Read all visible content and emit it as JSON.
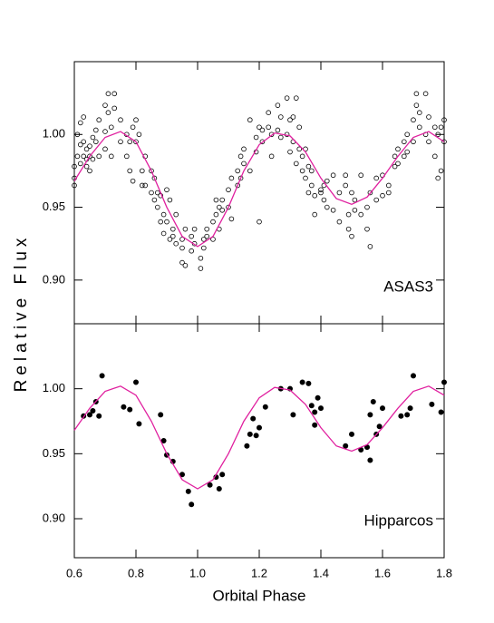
{
  "chart_data": [
    {
      "type": "scatter",
      "ylabel": "Relative Flux",
      "annotation": "ASAS3",
      "xlim": [
        0.6,
        1.8
      ],
      "ylim": [
        0.87,
        1.05
      ],
      "yticks": [
        {
          "value": 0.9,
          "label": "0.90"
        },
        0.95,
        {
          "value": 1,
          "label": "1.00"
        }
      ],
      "series": [
        {
          "type": "points",
          "marker": "open",
          "color": "#000000",
          "x": [
            0.6,
            0.6,
            0.6,
            0.61,
            0.61,
            0.62,
            0.62,
            0.62,
            0.63,
            0.63,
            0.63,
            0.64,
            0.64,
            0.64,
            0.65,
            0.65,
            0.65,
            0.66,
            0.66,
            0.67,
            0.67,
            0.68,
            0.68,
            0.7,
            0.7,
            0.7,
            0.71,
            0.71,
            0.72,
            0.72,
            0.73,
            0.73,
            0.75,
            0.75,
            0.77,
            0.77,
            0.78,
            0.78,
            0.79,
            0.79,
            0.8,
            0.8,
            0.81,
            0.82,
            0.82,
            0.83,
            0.83,
            0.85,
            0.85,
            0.86,
            0.86,
            0.87,
            0.87,
            0.88,
            0.88,
            0.89,
            0.89,
            0.9,
            0.9,
            0.91,
            0.91,
            0.92,
            0.92,
            0.93,
            0.93,
            0.95,
            0.95,
            0.95,
            0.96,
            0.96,
            0.98,
            0.98,
            0.99,
            0.99,
            1.01,
            1.01,
            1.02,
            1.02,
            1.03,
            1.03,
            1.05,
            1.05,
            1.06,
            1.06,
            1.07,
            1.07,
            1.08,
            1.08,
            1.1,
            1.1,
            1.11,
            1.11,
            1.13,
            1.13,
            1.14,
            1.14,
            1.15,
            1.15,
            1.17,
            1.17,
            1.19,
            1.19,
            1.2,
            1.2,
            1.21,
            1.21,
            1.23,
            1.23,
            1.24,
            1.24,
            1.26,
            1.26,
            1.27,
            1.27,
            1.29,
            1.29,
            1.3,
            1.3,
            1.31,
            1.31,
            1.32,
            1.32,
            1.33,
            1.33,
            1.34,
            1.34,
            1.35,
            1.35,
            1.36,
            1.36,
            1.37,
            1.37,
            1.38,
            1.38,
            1.4,
            1.4,
            1.41,
            1.41,
            1.42,
            1.42,
            1.44,
            1.44,
            1.46,
            1.46,
            1.48,
            1.48,
            1.49,
            1.49,
            1.5,
            1.5,
            1.51,
            1.51,
            1.53,
            1.53,
            1.55,
            1.55,
            1.56,
            1.56,
            1.58,
            1.58,
            1.6,
            1.6,
            1.62,
            1.62,
            1.64,
            1.64,
            1.65,
            1.65,
            1.67,
            1.67,
            1.68,
            1.68,
            1.7,
            1.7,
            1.71,
            1.71,
            1.72,
            1.72,
            1.74,
            1.74,
            1.75,
            1.75,
            1.77,
            1.77,
            1.78,
            1.78,
            1.79,
            1.79,
            1.8,
            1.8
          ],
          "values": [
            0.97,
            0.965,
            0.978,
            0.985,
            1.0,
            0.993,
            1.008,
            0.98,
            0.985,
            0.995,
            1.012,
            0.983,
            0.978,
            0.99,
            0.985,
            0.992,
            0.975,
            0.998,
            0.983,
            0.995,
            1.003,
            0.985,
            1.01,
            1.002,
            1.02,
            0.99,
            1.028,
            1.015,
            0.985,
            1.005,
            1.028,
            1.018,
            1.01,
            0.995,
            1.0,
            0.985,
            0.995,
            0.975,
            1.005,
            0.968,
            1.01,
            0.995,
            1.0,
            0.965,
            0.975,
            0.985,
            0.965,
            0.96,
            0.975,
            0.955,
            0.97,
            0.96,
            0.95,
            0.94,
            0.958,
            0.932,
            0.945,
            0.94,
            0.962,
            0.955,
            0.928,
            0.935,
            0.93,
            0.925,
            0.945,
            0.928,
            0.922,
            0.912,
            0.91,
            0.935,
            0.93,
            0.92,
            0.925,
            0.935,
            0.915,
            0.908,
            0.928,
            0.922,
            0.935,
            0.93,
            0.94,
            0.928,
            0.955,
            0.945,
            0.95,
            0.935,
            0.955,
            0.948,
            0.962,
            0.95,
            0.97,
            0.942,
            0.975,
            0.965,
            0.985,
            0.97,
            0.98,
            0.99,
            1.01,
            0.975,
            0.998,
            0.988,
            1.005,
            0.94,
            0.995,
            1.003,
            1.005,
            1.015,
            0.985,
            1.0,
            1.02,
            1.003,
            0.998,
            1.012,
            1.025,
            1.0,
            1.01,
            0.988,
            0.995,
            1.012,
            1.025,
            0.98,
            1.005,
            0.99,
            0.985,
            0.975,
            0.99,
            0.97,
            0.978,
            0.96,
            0.965,
            0.975,
            0.958,
            0.945,
            0.96,
            0.962,
            0.955,
            0.965,
            0.95,
            0.968,
            0.972,
            0.948,
            0.96,
            0.94,
            0.972,
            0.965,
            0.935,
            0.945,
            0.93,
            0.96,
            0.955,
            0.948,
            0.945,
            0.972,
            0.935,
            0.95,
            0.923,
            0.96,
            0.955,
            0.97,
            0.972,
            0.958,
            0.965,
            0.96,
            0.978,
            0.985,
            0.98,
            0.99,
            0.985,
            0.995,
            0.988,
            1.0,
            1.01,
            0.995,
            1.02,
            1.028,
            1.005,
            1.015,
            1.028,
            1.0,
            0.995,
            1.012,
            0.985,
            1.005,
            1.0,
            0.97,
            1.005,
            0.975,
            1.01,
            0.995
          ]
        },
        {
          "type": "line",
          "color": "#e0209f",
          "x": [
            0.6,
            0.65,
            0.7,
            0.75,
            0.8,
            0.85,
            0.9,
            0.95,
            1.0,
            1.05,
            1.1,
            1.15,
            1.2,
            1.25,
            1.3,
            1.35,
            1.4,
            1.45,
            1.5,
            1.55,
            1.6,
            1.65,
            1.7,
            1.75,
            1.8
          ],
          "values": [
            0.968,
            0.985,
            0.998,
            1.002,
            0.995,
            0.975,
            0.95,
            0.93,
            0.923,
            0.93,
            0.95,
            0.975,
            0.993,
            1.001,
            0.999,
            0.988,
            0.97,
            0.956,
            0.952,
            0.957,
            0.97,
            0.985,
            0.998,
            1.002,
            0.995
          ]
        }
      ]
    },
    {
      "type": "scatter",
      "xlabel": "Orbital Phase",
      "annotation": "Hipparcos",
      "xlim": [
        0.6,
        1.8
      ],
      "ylim": [
        0.87,
        1.05
      ],
      "xticks": [
        0.6,
        0.8,
        {
          "value": 1,
          "label": "1.0"
        },
        1.2,
        1.4,
        1.6,
        1.8
      ],
      "yticks": [
        {
          "value": 0.9,
          "label": "0.90"
        },
        0.95,
        {
          "value": 1,
          "label": "1.00"
        }
      ],
      "series": [
        {
          "type": "points",
          "marker": "filled",
          "color": "#000000",
          "x": [
            0.63,
            0.65,
            0.66,
            0.67,
            0.68,
            0.69,
            0.76,
            0.78,
            0.8,
            0.81,
            0.88,
            0.89,
            0.9,
            0.92,
            0.95,
            0.97,
            0.98,
            1.04,
            1.06,
            1.07,
            1.08,
            1.16,
            1.17,
            1.18,
            1.19,
            1.2,
            1.22,
            1.27,
            1.3,
            1.31,
            1.34,
            1.36,
            1.37,
            1.38,
            1.39,
            1.38,
            1.4,
            1.48,
            1.5,
            1.53,
            1.55,
            1.56,
            1.56,
            1.57,
            1.58,
            1.59,
            1.6,
            1.66,
            1.68,
            1.69,
            1.7,
            1.76,
            1.79,
            1.8
          ],
          "values": [
            0.979,
            0.98,
            0.983,
            0.99,
            0.979,
            1.01,
            0.986,
            0.984,
            1.005,
            0.973,
            0.98,
            0.96,
            0.949,
            0.944,
            0.934,
            0.921,
            0.911,
            0.926,
            0.932,
            0.923,
            0.934,
            0.956,
            0.965,
            0.977,
            0.964,
            0.97,
            0.986,
            1.0,
            1.0,
            0.98,
            1.005,
            1.004,
            0.987,
            0.982,
            0.993,
            0.972,
            0.985,
            0.956,
            0.965,
            0.953,
            0.955,
            0.945,
            0.98,
            0.99,
            0.965,
            0.971,
            0.985,
            0.979,
            0.98,
            0.985,
            1.01,
            0.988,
            0.982,
            1.005
          ]
        },
        {
          "type": "line",
          "color": "#e0209f",
          "x": [
            0.6,
            0.65,
            0.7,
            0.75,
            0.8,
            0.85,
            0.9,
            0.95,
            1.0,
            1.05,
            1.1,
            1.15,
            1.2,
            1.25,
            1.3,
            1.35,
            1.4,
            1.45,
            1.5,
            1.55,
            1.6,
            1.65,
            1.7,
            1.75,
            1.8
          ],
          "values": [
            0.968,
            0.985,
            0.998,
            1.002,
            0.995,
            0.975,
            0.95,
            0.93,
            0.923,
            0.93,
            0.95,
            0.975,
            0.993,
            1.001,
            0.999,
            0.988,
            0.97,
            0.956,
            0.952,
            0.957,
            0.97,
            0.985,
            0.998,
            1.002,
            0.995
          ]
        }
      ]
    }
  ]
}
